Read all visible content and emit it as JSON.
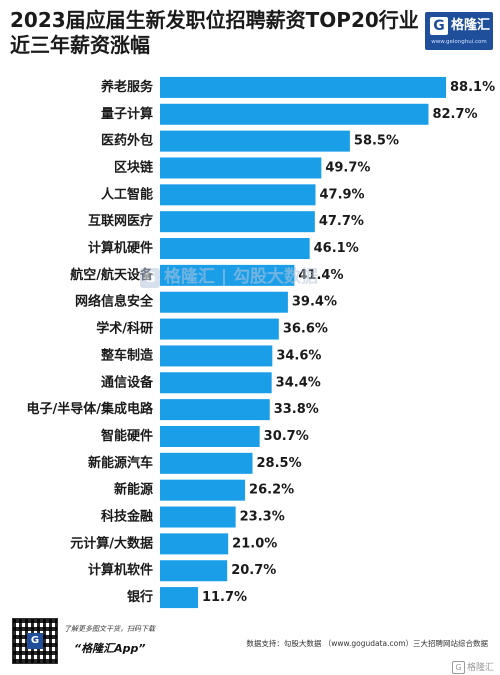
{
  "chart_data": {
    "type": "bar",
    "orientation": "horizontal",
    "title": "2023届应届生新发职位招聘薪资TOP20行业近三年薪资涨幅",
    "title_lines": [
      "2023届应届生新发职位招聘薪资TOP20行业",
      "近三年薪资涨幅"
    ],
    "categories": [
      "养老服务",
      "量子计算",
      "医药外包",
      "区块链",
      "人工智能",
      "互联网医疗",
      "计算机硬件",
      "航空/航天设备",
      "网络信息安全",
      "学术/科研",
      "整车制造",
      "通信设备",
      "电子/半导体/集成电路",
      "智能硬件",
      "新能源汽车",
      "新能源",
      "科技金融",
      "元计算/大数据",
      "计算机软件",
      "银行"
    ],
    "values": [
      88.1,
      82.7,
      58.5,
      49.7,
      47.9,
      47.7,
      46.1,
      41.4,
      39.4,
      36.6,
      34.6,
      34.4,
      33.8,
      30.7,
      28.5,
      26.2,
      23.3,
      21.0,
      20.7,
      11.7
    ],
    "value_labels": [
      "88.1%",
      "82.7%",
      "58.5%",
      "49.7%",
      "47.9%",
      "47.7%",
      "46.1%",
      "41.4%",
      "39.4%",
      "36.6%",
      "34.6%",
      "34.4%",
      "33.8%",
      "30.7%",
      "28.5%",
      "26.2%",
      "23.3%",
      "21.0%",
      "20.7%",
      "11.7%"
    ],
    "unit": "%",
    "xlim": [
      0,
      88.1
    ],
    "bar_color": "#1a9ee8",
    "grid": false,
    "legend": "none"
  },
  "brand": {
    "logo_letter": "G",
    "name": "格隆汇",
    "url": "www.gelonghui.com",
    "color": "#1f4e9a"
  },
  "watermark": {
    "logo_letter": "G",
    "text": "格隆汇 | 勾股大数据"
  },
  "footer": {
    "qr_icon": "qr-code-icon",
    "qr_logo_letter": "G",
    "scan_text": "了解更多图文干货，扫码下载",
    "app_name": "“格隆汇App”",
    "source": "数据支持：勾股大数据 （www.gogudata.com）三大招聘网站综合数据",
    "corner_logo_letter": "G",
    "corner_mark": "格隆汇"
  }
}
